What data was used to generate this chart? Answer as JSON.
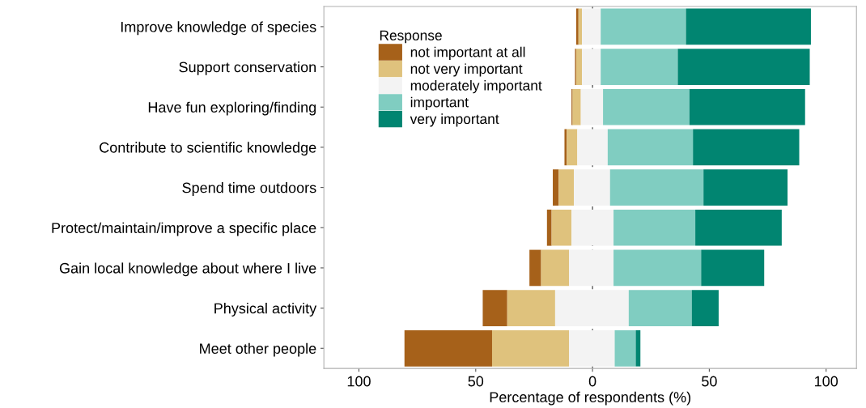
{
  "chart_data": {
    "type": "bar",
    "orientation": "horizontal",
    "xlabel": "Percentage of respondents (%)",
    "legend_title": "Response",
    "legend": "top left",
    "categories": [
      "Improve knowledge of species",
      "Support conservation",
      "Have fun exploring/finding",
      "Contribute to scientific knowledge",
      "Spend time outdoors",
      "Protect/maintain/improve a specific place",
      "Gain local knowledge about where I live",
      "Physical activity",
      "Meet other people"
    ],
    "series": [
      {
        "name": "not important at all",
        "color": "#a6611a",
        "base": [
          -7,
          -7.5,
          -9,
          -12,
          -17,
          -19.5,
          -27,
          -47,
          -80.5
        ],
        "values": [
          1,
          0.5,
          0.5,
          1,
          2.5,
          2,
          5,
          10.5,
          37.5
        ]
      },
      {
        "name": "not very important",
        "color": "#dfc27d",
        "base": [
          -6,
          -7,
          -8.5,
          -11,
          -14.5,
          -17.5,
          -22,
          -36.5,
          -43
        ],
        "values": [
          1.5,
          2.5,
          3.5,
          4.5,
          6.5,
          8.5,
          12,
          20.5,
          33
        ]
      },
      {
        "name": "moderately important",
        "color": "#f3f3f3",
        "base": [
          -4.5,
          -4.5,
          -5,
          -6.5,
          -8,
          -9,
          -10,
          -16,
          -10
        ],
        "values": [
          8,
          8,
          9.5,
          13,
          15.5,
          18,
          19,
          31.5,
          19.5
        ]
      },
      {
        "name": "important",
        "color": "#80cdc1",
        "base": [
          3.5,
          3.5,
          4.5,
          6.5,
          7.5,
          9,
          9,
          15.5,
          9.5
        ],
        "values": [
          36.5,
          33,
          37,
          36.5,
          40,
          35,
          37.5,
          27,
          9
        ]
      },
      {
        "name": "very important",
        "color": "#018571",
        "base": [
          40,
          36.5,
          41.5,
          43,
          47.5,
          44,
          46.5,
          42.5,
          18.5
        ],
        "values": [
          53.5,
          56.5,
          49.5,
          45.5,
          36,
          37,
          27,
          11.5,
          2
        ]
      }
    ],
    "xlim": [
      -115,
      113
    ],
    "xticks": [
      {
        "value": -100,
        "label": "100"
      },
      {
        "value": -50,
        "label": "50"
      },
      0,
      50,
      100
    ],
    "ref_lines": [
      {
        "axis": "x",
        "value": 0,
        "line_style": "dashed",
        "color": "#333333"
      }
    ]
  }
}
